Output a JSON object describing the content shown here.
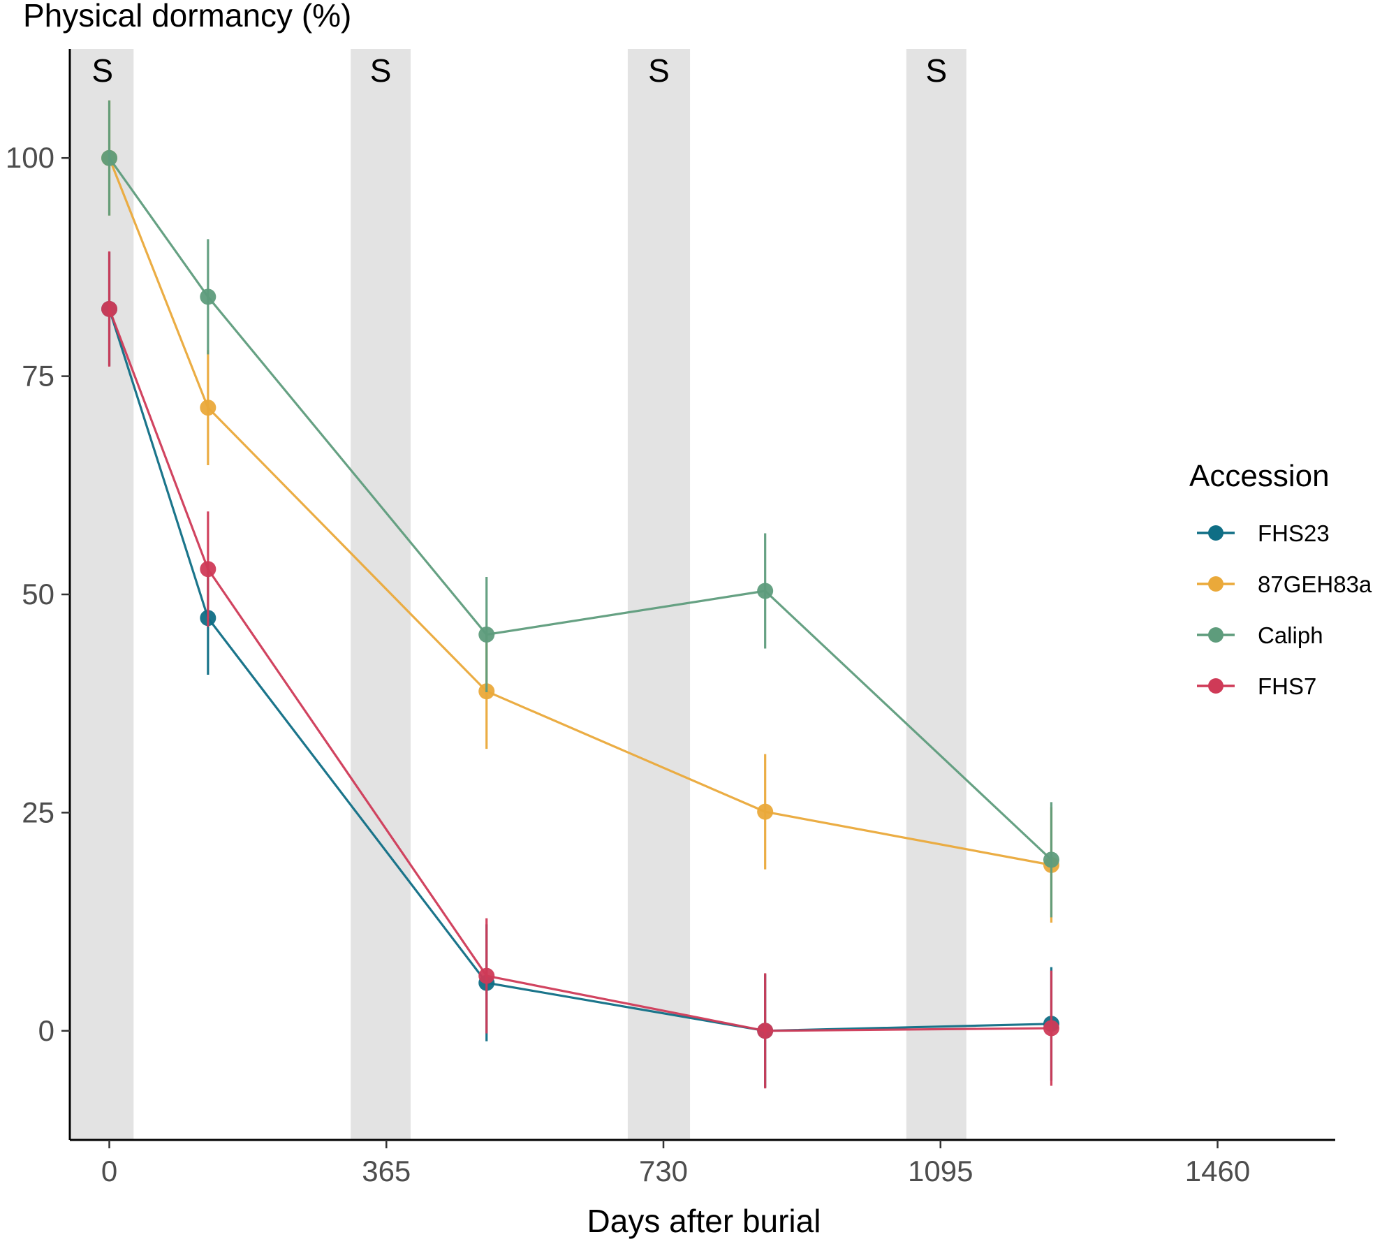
{
  "chart_data": {
    "type": "line",
    "title": "",
    "ylabel": "Physical dormancy (%)",
    "xlabel": "Days after burial",
    "xlim": [
      -52,
      1615
    ],
    "ylim": [
      -12.5,
      112.5
    ],
    "x_ticks": [
      0,
      365,
      730,
      1095,
      1460
    ],
    "y_ticks": [
      0,
      25,
      50,
      75,
      100
    ],
    "grid": false,
    "legend": {
      "title": "Accession",
      "position": "right"
    },
    "shaded_bands": [
      {
        "label": "S",
        "x_start": -50,
        "x_end": 32
      },
      {
        "label": "S",
        "x_start": 318,
        "x_end": 397
      },
      {
        "label": "S",
        "x_start": 683,
        "x_end": 765
      },
      {
        "label": "S",
        "x_start": 1050,
        "x_end": 1129
      }
    ],
    "series": [
      {
        "name": "FHS23",
        "color": "#0f6e85",
        "points": [
          {
            "x": 0,
            "y": 82.7,
            "err": 6.5
          },
          {
            "x": 130,
            "y": 47.3,
            "err": 6.5
          },
          {
            "x": 497,
            "y": 5.5,
            "err": 6.7
          },
          {
            "x": 864,
            "y": 0.0,
            "err": 6.5
          },
          {
            "x": 1241,
            "y": 0.8,
            "err": 6.5
          }
        ]
      },
      {
        "name": "87GEH83a",
        "color": "#eaa93a",
        "points": [
          {
            "x": 0,
            "y": 100.0,
            "err": 6.6
          },
          {
            "x": 130,
            "y": 71.4,
            "err": 6.6
          },
          {
            "x": 497,
            "y": 38.9,
            "err": 6.6
          },
          {
            "x": 864,
            "y": 25.1,
            "err": 6.6
          },
          {
            "x": 1241,
            "y": 19.0,
            "err": 6.6
          }
        ]
      },
      {
        "name": "Caliph",
        "color": "#5e9c7c",
        "points": [
          {
            "x": 0,
            "y": 100.0,
            "err": 6.6
          },
          {
            "x": 130,
            "y": 84.1,
            "err": 6.6
          },
          {
            "x": 497,
            "y": 45.4,
            "err": 6.6
          },
          {
            "x": 864,
            "y": 50.4,
            "err": 6.6
          },
          {
            "x": 1241,
            "y": 19.6,
            "err": 6.6
          }
        ]
      },
      {
        "name": "FHS7",
        "color": "#cf3a57",
        "points": [
          {
            "x": 0,
            "y": 82.7,
            "err": 6.6
          },
          {
            "x": 130,
            "y": 52.9,
            "err": 6.6
          },
          {
            "x": 497,
            "y": 6.3,
            "err": 6.6
          },
          {
            "x": 864,
            "y": 0.0,
            "err": 6.6
          },
          {
            "x": 1241,
            "y": 0.3,
            "err": 6.6
          }
        ]
      }
    ]
  }
}
